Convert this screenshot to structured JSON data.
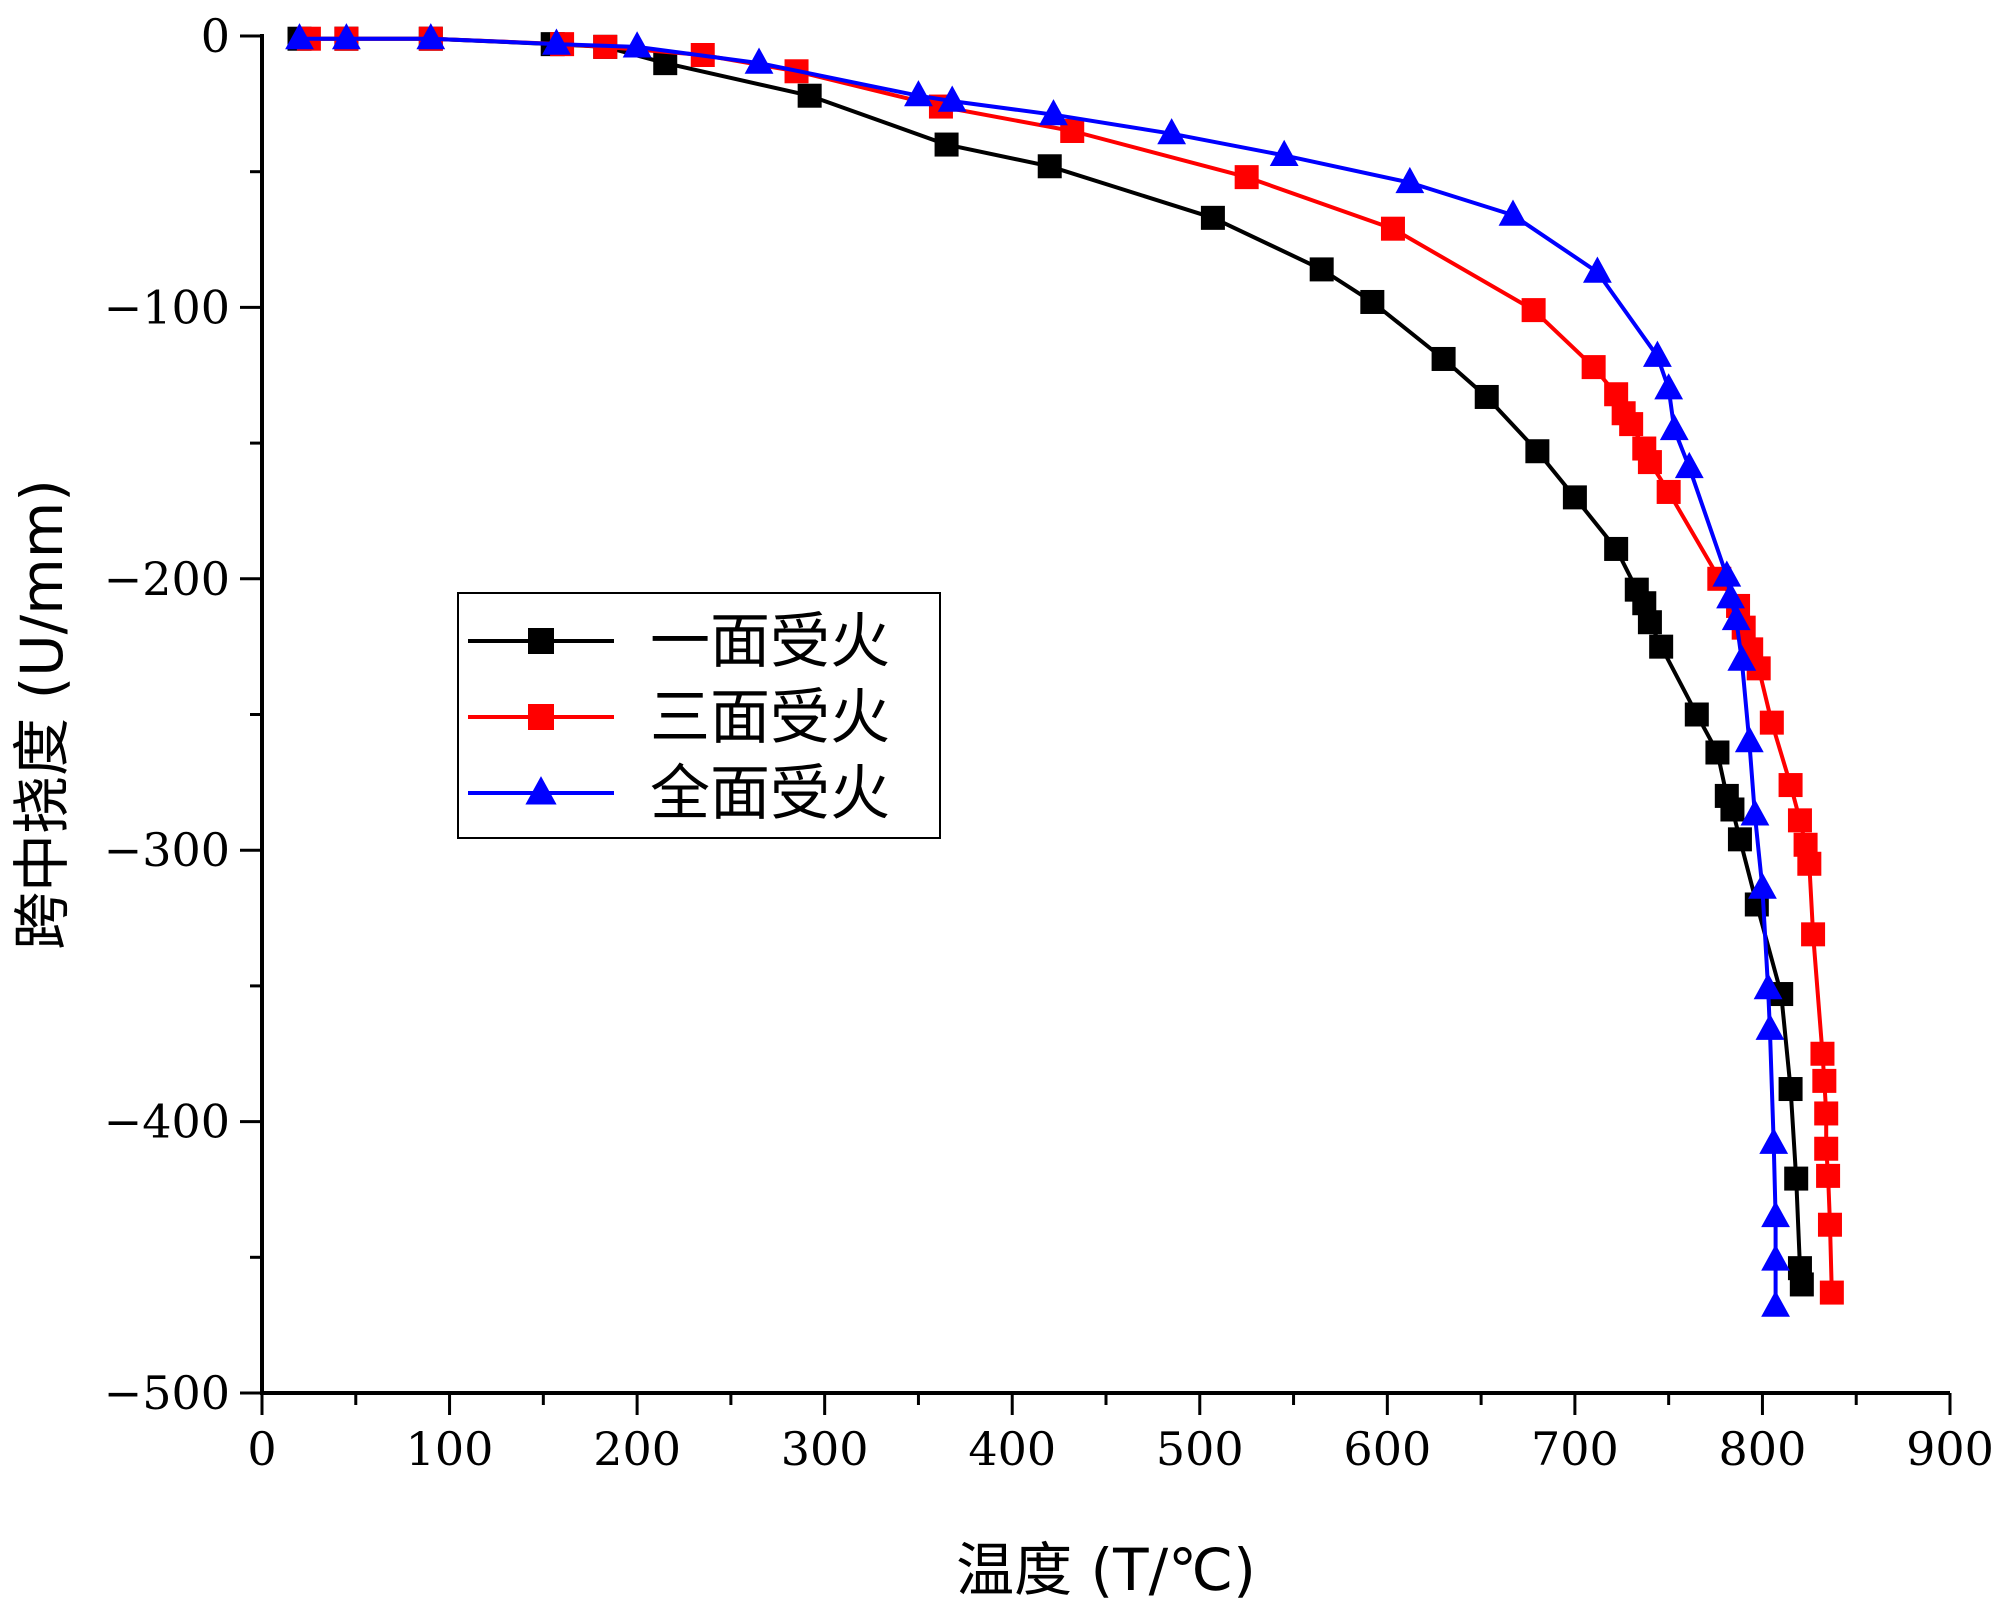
{
  "chart_data": {
    "type": "line",
    "title": "",
    "xlabel": "温度 (T/℃)",
    "ylabel": "跨中挠度 (U/mm)",
    "xlim": [
      0,
      900
    ],
    "ylim": [
      -500,
      0
    ],
    "xticks": [
      "0",
      "100",
      "200",
      "300",
      "400",
      "500",
      "600",
      "700",
      "800",
      "900"
    ],
    "yticks": [
      "0",
      "-100",
      "-200",
      "-300",
      "-400",
      "-500"
    ],
    "legend_position": "center-left",
    "series": [
      {
        "name": "一面受火",
        "color": "#000000",
        "marker": "square",
        "points": [
          [
            20,
            -1
          ],
          [
            45,
            -1
          ],
          [
            90,
            -1
          ],
          [
            155,
            -3
          ],
          [
            183,
            -4
          ],
          [
            215,
            -10
          ],
          [
            292,
            -22
          ],
          [
            365,
            -40
          ],
          [
            420,
            -48
          ],
          [
            507,
            -67
          ],
          [
            565,
            -86
          ],
          [
            592,
            -98
          ],
          [
            630,
            -119
          ],
          [
            653,
            -133
          ],
          [
            680,
            -153
          ],
          [
            700,
            -170
          ],
          [
            722,
            -189
          ],
          [
            733,
            -204
          ],
          [
            737,
            -209
          ],
          [
            740,
            -216
          ],
          [
            746,
            -225
          ],
          [
            765,
            -250
          ],
          [
            776,
            -264
          ],
          [
            781,
            -280
          ],
          [
            784,
            -285
          ],
          [
            788,
            -296
          ],
          [
            797,
            -320
          ],
          [
            810,
            -353
          ],
          [
            815,
            -388
          ],
          [
            818,
            -421
          ],
          [
            820,
            -454
          ],
          [
            821,
            -460
          ]
        ]
      },
      {
        "name": "三面受火",
        "color": "#ff0000",
        "marker": "square",
        "points": [
          [
            25,
            -1
          ],
          [
            45,
            -1
          ],
          [
            90,
            -1
          ],
          [
            160,
            -3
          ],
          [
            183,
            -4
          ],
          [
            235,
            -7
          ],
          [
            285,
            -13
          ],
          [
            362,
            -26
          ],
          [
            432,
            -35
          ],
          [
            525,
            -52
          ],
          [
            603,
            -71
          ],
          [
            678,
            -101
          ],
          [
            710,
            -122
          ],
          [
            722,
            -132
          ],
          [
            726,
            -139
          ],
          [
            730,
            -143
          ],
          [
            737,
            -152
          ],
          [
            740,
            -157
          ],
          [
            750,
            -168
          ],
          [
            777,
            -200
          ],
          [
            787,
            -210
          ],
          [
            790,
            -218
          ],
          [
            794,
            -226
          ],
          [
            798,
            -233
          ],
          [
            805,
            -253
          ],
          [
            815,
            -276
          ],
          [
            820,
            -289
          ],
          [
            823,
            -298
          ],
          [
            825,
            -305
          ],
          [
            827,
            -331
          ],
          [
            832,
            -375
          ],
          [
            833,
            -385
          ],
          [
            834,
            -397
          ],
          [
            834,
            -410
          ],
          [
            835,
            -420
          ],
          [
            836,
            -438
          ],
          [
            837,
            -463
          ]
        ]
      },
      {
        "name": "全面受火",
        "color": "#0000ff",
        "marker": "triangle",
        "points": [
          [
            20,
            -1
          ],
          [
            45,
            -1
          ],
          [
            90,
            -1
          ],
          [
            157,
            -3
          ],
          [
            200,
            -4
          ],
          [
            265,
            -10
          ],
          [
            350,
            -22
          ],
          [
            368,
            -24
          ],
          [
            422,
            -29
          ],
          [
            485,
            -36
          ],
          [
            545,
            -44
          ],
          [
            612,
            -54
          ],
          [
            667,
            -66
          ],
          [
            712,
            -87
          ],
          [
            744,
            -118
          ],
          [
            750,
            -130
          ],
          [
            753,
            -145
          ],
          [
            761,
            -159
          ],
          [
            781,
            -199
          ],
          [
            783,
            -207
          ],
          [
            786,
            -215
          ],
          [
            789,
            -230
          ],
          [
            793,
            -260
          ],
          [
            796,
            -287
          ],
          [
            800,
            -314
          ],
          [
            803,
            -351
          ],
          [
            804,
            -366
          ],
          [
            806,
            -408
          ],
          [
            807,
            -435
          ],
          [
            807,
            -451
          ],
          [
            807,
            -468
          ]
        ]
      }
    ]
  }
}
